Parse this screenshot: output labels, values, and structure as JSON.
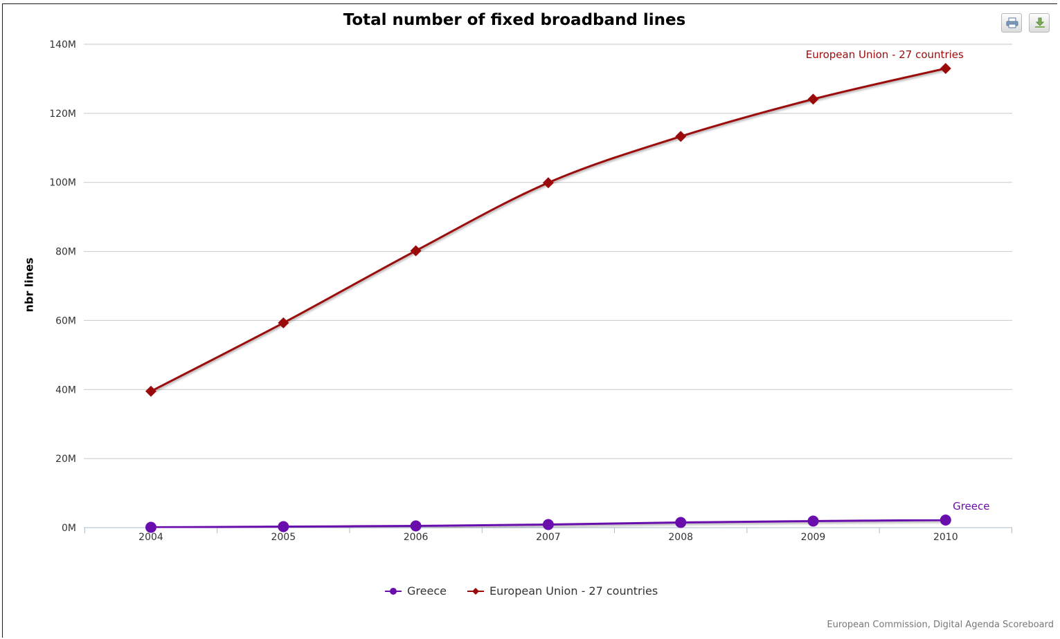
{
  "toolbar": {
    "print_icon": "print-icon",
    "download_icon": "download-icon"
  },
  "credit": "European Commission, Digital Agenda Scoreboard",
  "chart_data": {
    "type": "line",
    "title": "Total number of fixed broadband lines",
    "xlabel": "",
    "ylabel": "nbr lines",
    "x": [
      2004,
      2005,
      2006,
      2007,
      2008,
      2009,
      2010
    ],
    "y_tick_labels": [
      "0M",
      "20M",
      "40M",
      "60M",
      "80M",
      "100M",
      "120M",
      "140M"
    ],
    "y_ticks": [
      0,
      20,
      40,
      60,
      80,
      100,
      120,
      140
    ],
    "ylim": [
      0,
      140
    ],
    "grid": true,
    "legend_position": "bottom-center",
    "series": [
      {
        "name": "Greece",
        "color": "#6a0dad",
        "marker": "circle",
        "end_label": "Greece",
        "values": [
          0.1,
          0.3,
          0.5,
          0.9,
          1.5,
          1.9,
          2.2
        ]
      },
      {
        "name": "European Union - 27 countries",
        "color": "#9b0a0a",
        "marker": "diamond",
        "end_label": "European Union - 27 countries",
        "values": [
          39.5,
          59.3,
          80.2,
          99.9,
          113.3,
          124.1,
          133.0
        ]
      }
    ]
  }
}
